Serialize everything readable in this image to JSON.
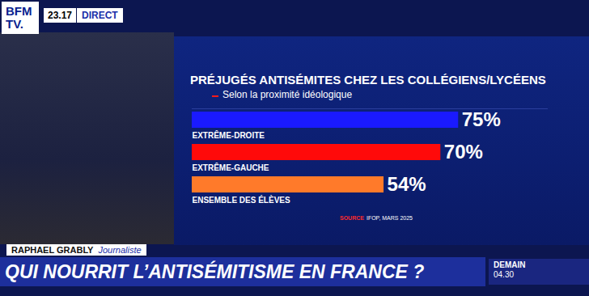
{
  "broadcast": {
    "logo": [
      "BFM",
      "TV."
    ],
    "time": "23.17",
    "live": "DIRECT",
    "name": "RAPHAEL GRABLY",
    "role": "Journaliste",
    "headline": "QUI NOURRIT L’ANTISÉMITISME EN FRANCE ?",
    "next": "DEMAIN",
    "next_time": "04.30"
  },
  "chart_data": {
    "type": "bar",
    "orientation": "horizontal",
    "title": "PRÉJUGÉS ANTISÉMITES CHEZ LES COLLÉGIENS/LYCÉENS",
    "subtitle": "Selon la proximité idéologique",
    "caption": {
      "label": "SOURCE",
      "text": "IFOP, MARS 2025"
    },
    "categories": [
      "EXTRÊME-DROITE",
      "EXTRÊME-GAUCHE",
      "ENSEMBLE DES ÉLÈVES"
    ],
    "values": [
      75,
      70,
      54
    ],
    "value_labels": [
      "75%",
      "70%",
      "54%"
    ],
    "colors": [
      "#1a1aff",
      "#ff0a0a",
      "#ff7a2a"
    ],
    "xlim": [
      0,
      100
    ],
    "grid": false,
    "data_labels": true,
    "tick_labels": false
  }
}
